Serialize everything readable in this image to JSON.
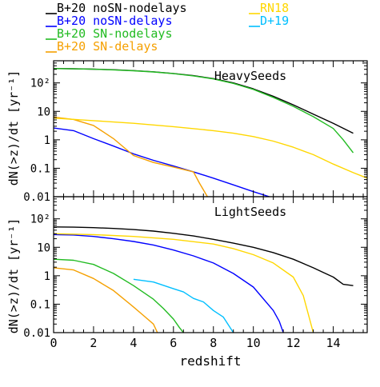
{
  "legend": {
    "entries": [
      {
        "label": "B+20 noSN-nodelays",
        "color": "#000000"
      },
      {
        "label": "B+20 noSN-delays",
        "color": "#0000ff"
      },
      {
        "label": "B+20 SN-nodelays",
        "color": "#22bb22"
      },
      {
        "label": "B+20 SN-delays",
        "color": "#f5a000"
      },
      {
        "label": "RN18",
        "color": "#ffd700"
      },
      {
        "label": "D+19",
        "color": "#00bfff"
      }
    ]
  },
  "chart_data": [
    {
      "type": "line",
      "title": "HeavySeeds",
      "xlabel": "",
      "ylabel": "dN(>z)/dt [yr⁻¹]",
      "xlim": [
        0,
        15.7
      ],
      "ylim": [
        0.01,
        600
      ],
      "yscale": "log",
      "y_ticks": [
        {
          "value": 0.01,
          "label": "0.01"
        },
        {
          "value": 0.1,
          "label": "0.1"
        },
        {
          "value": 1,
          "label": "1"
        },
        {
          "value": 10,
          "label": "10"
        },
        {
          "value": 100,
          "label": "10²"
        }
      ],
      "series": [
        {
          "name": "B+20 noSN-nodelays",
          "color": "#000000",
          "x": [
            0,
            1,
            2,
            3,
            4,
            5,
            6,
            7,
            8,
            9,
            10,
            11,
            12,
            13,
            14,
            15
          ],
          "y": [
            320,
            315,
            305,
            290,
            270,
            245,
            215,
            180,
            142,
            100,
            62,
            34,
            17,
            8,
            3.8,
            1.7
          ]
        },
        {
          "name": "B+20 SN-nodelays",
          "color": "#22bb22",
          "x": [
            0,
            1,
            2,
            3,
            4,
            5,
            6,
            7,
            8,
            9,
            10,
            11,
            12,
            13,
            14,
            14.5,
            15
          ],
          "y": [
            318,
            312,
            302,
            287,
            267,
            242,
            212,
            177,
            138,
            96,
            59,
            31,
            15,
            6.5,
            2.5,
            1.0,
            0.35
          ]
        },
        {
          "name": "B+20 noSN-delays",
          "color": "#0000ff",
          "x": [
            0,
            1,
            2,
            3,
            4,
            5,
            6,
            7,
            8,
            9,
            10,
            10.8
          ],
          "y": [
            2.6,
            2.1,
            1.1,
            0.6,
            0.32,
            0.19,
            0.12,
            0.075,
            0.045,
            0.026,
            0.015,
            0.01
          ]
        },
        {
          "name": "B+20 SN-delays",
          "color": "#f5a000",
          "x": [
            0,
            1,
            2,
            3,
            4,
            5,
            6,
            7,
            7.3,
            7.7
          ],
          "y": [
            6.3,
            5.2,
            3.2,
            1.1,
            0.28,
            0.16,
            0.11,
            0.075,
            0.03,
            0.01
          ]
        },
        {
          "name": "RN18",
          "color": "#ffd700",
          "x": [
            0,
            2,
            4,
            6,
            8,
            9,
            10,
            11,
            12,
            13,
            14,
            15,
            15.7
          ],
          "y": [
            5.8,
            4.7,
            3.8,
            2.9,
            2.1,
            1.7,
            1.3,
            0.9,
            0.55,
            0.3,
            0.14,
            0.07,
            0.045
          ]
        }
      ]
    },
    {
      "type": "line",
      "title": "LightSeeds",
      "xlabel": "redshift",
      "ylabel": "dN(>z)/dt [yr⁻¹]",
      "xlim": [
        0,
        15.7
      ],
      "ylim": [
        0.01,
        600
      ],
      "yscale": "log",
      "x_ticks": [
        {
          "value": 0,
          "label": "0"
        },
        {
          "value": 2,
          "label": "2"
        },
        {
          "value": 4,
          "label": "4"
        },
        {
          "value": 6,
          "label": "6"
        },
        {
          "value": 8,
          "label": "8"
        },
        {
          "value": 10,
          "label": "10"
        },
        {
          "value": 12,
          "label": "12"
        },
        {
          "value": 14,
          "label": "14"
        }
      ],
      "y_ticks": [
        {
          "value": 0.01,
          "label": "0.01"
        },
        {
          "value": 0.1,
          "label": "0.1"
        },
        {
          "value": 1,
          "label": "1"
        },
        {
          "value": 10,
          "label": "10"
        },
        {
          "value": 100,
          "label": "10²"
        }
      ],
      "series": [
        {
          "name": "B+20 noSN-nodelays",
          "color": "#000000",
          "x": [
            0,
            1,
            2,
            3,
            4,
            5,
            6,
            7,
            8,
            9,
            10,
            11,
            12,
            13,
            13.5,
            14,
            14.5,
            15
          ],
          "y": [
            52,
            51,
            49,
            46,
            42,
            37,
            31,
            25,
            19,
            14,
            10,
            6.5,
            3.8,
            1.9,
            1.3,
            0.9,
            0.5,
            0.45
          ]
        },
        {
          "name": "B+20 noSN-delays",
          "color": "#0000ff",
          "x": [
            0,
            1,
            2,
            3,
            4,
            5,
            6,
            7,
            8,
            9,
            10,
            11,
            11.3,
            11.5
          ],
          "y": [
            28,
            27,
            24,
            20,
            16,
            12,
            8,
            5,
            2.8,
            1.2,
            0.4,
            0.06,
            0.025,
            0.01
          ]
        },
        {
          "name": "RN18",
          "color": "#ffd700",
          "x": [
            0,
            2,
            4,
            6,
            8,
            9,
            10,
            11,
            12,
            12.5,
            13
          ],
          "y": [
            30,
            28,
            24,
            19,
            13,
            9,
            5.5,
            2.8,
            0.9,
            0.2,
            0.01
          ]
        },
        {
          "name": "B+20 SN-nodelays",
          "color": "#22bb22",
          "x": [
            0,
            1,
            2,
            3,
            4,
            5,
            5.5,
            6,
            6.3,
            6.5
          ],
          "y": [
            3.8,
            3.5,
            2.5,
            1.2,
            0.45,
            0.15,
            0.07,
            0.03,
            0.015,
            0.01
          ]
        },
        {
          "name": "B+20 SN-delays",
          "color": "#f5a000",
          "x": [
            0,
            1,
            2,
            3,
            4,
            4.5,
            5,
            5.2
          ],
          "y": [
            1.9,
            1.6,
            0.8,
            0.3,
            0.08,
            0.04,
            0.02,
            0.01
          ]
        },
        {
          "name": "D+19",
          "color": "#00bfff",
          "x": [
            4,
            5,
            6,
            6.5,
            7,
            7.5,
            8,
            8.5,
            9
          ],
          "y": [
            0.75,
            0.6,
            0.35,
            0.27,
            0.16,
            0.12,
            0.06,
            0.035,
            0.01
          ]
        }
      ]
    }
  ]
}
